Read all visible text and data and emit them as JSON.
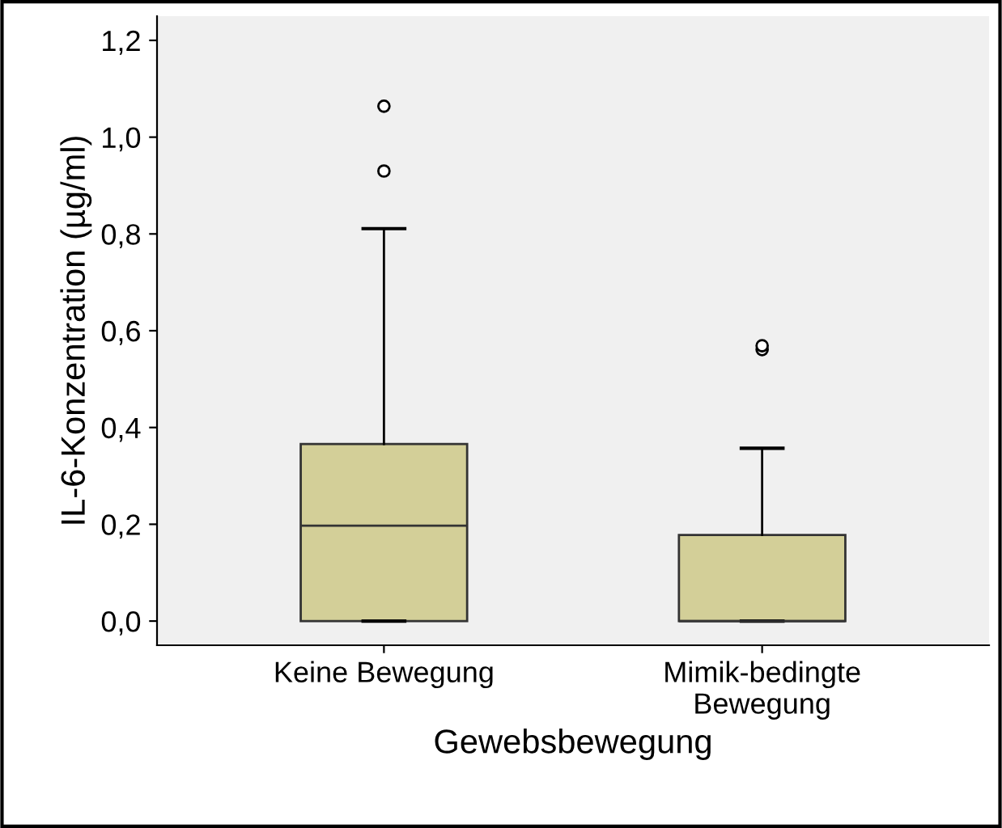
{
  "chart_data": {
    "type": "box",
    "xlabel": "Gewebsbewegung",
    "ylabel": "IL-6-Konzentration (µg/ml)",
    "categories": [
      "Keine Bewegung",
      "Mimik-bedingte\nBewegung"
    ],
    "series": [
      {
        "color": "#d3cf98",
        "boxes": [
          {
            "low": 0,
            "q1": 0,
            "median": 0.197,
            "q3": 0.366,
            "high": 0.811,
            "outliers": [
              0.93,
              1.064
            ]
          },
          {
            "low": 0,
            "q1": 0,
            "median": 0,
            "q3": 0.178,
            "high": 0.357,
            "outliers": [
              0.561,
              0.569
            ]
          }
        ]
      }
    ],
    "ylim": [
      -0.05,
      1.25
    ],
    "yticks": [
      {
        "value": 0,
        "label": "0,0"
      },
      {
        "value": 0.2,
        "label": "0,2"
      },
      {
        "value": 0.4,
        "label": "0,4"
      },
      {
        "value": 0.6,
        "label": "0,6"
      },
      {
        "value": 0.8,
        "label": "0,8"
      },
      {
        "value": 1.0,
        "label": "1,0"
      },
      {
        "value": 1.2,
        "label": "1,2"
      }
    ],
    "grid": false,
    "legend": false
  }
}
